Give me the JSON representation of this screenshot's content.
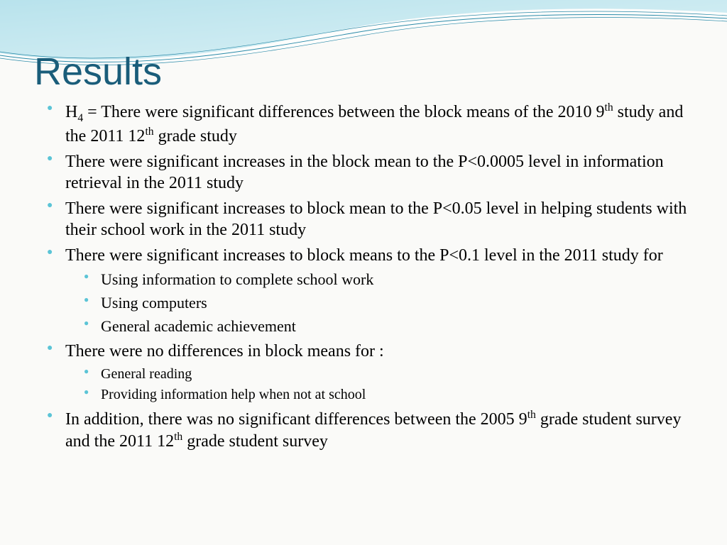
{
  "colors": {
    "title": "#1a5d7a",
    "bullet": "#5bc4d6",
    "wave_fill_light": "#a8dde8",
    "wave_fill_dark": "#4fb8d0",
    "wave_stroke": "#2a8aa8",
    "background": "#fafaf8",
    "text": "#000000"
  },
  "typography": {
    "title_fontsize": 54,
    "body_fontsize": 24,
    "sub_fontsize": 22,
    "sub_tight_fontsize": 20
  },
  "title": "Results",
  "bullets": [
    {
      "html": "H<sub>4</sub> = There were significant differences between the block means of the 2010 9<sup>th</sup> study and the 2011 12<sup>th</sup> grade study"
    },
    {
      "html": "There were significant increases in the block mean to the P&lt;0.0005 level in information retrieval in the 2011 study"
    },
    {
      "html": "There were significant increases to block mean to the P&lt;0.05 level in helping students with their school work in the 2011 study"
    },
    {
      "html": "There were significant increases to block means to the P&lt;0.1 level in the 2011 study for",
      "sub": [
        "Using information to complete school work",
        "Using computers",
        "General academic achievement"
      ],
      "sub_tight": false
    },
    {
      "html": "There were no differences in block means for :",
      "sub": [
        "General reading",
        "Providing information help when not at school"
      ],
      "sub_tight": true
    },
    {
      "html": "In addition, there was no significant differences between the 2005 9<sup>th</sup> grade student survey and the 2011 12<sup>th</sup> grade student survey"
    }
  ]
}
